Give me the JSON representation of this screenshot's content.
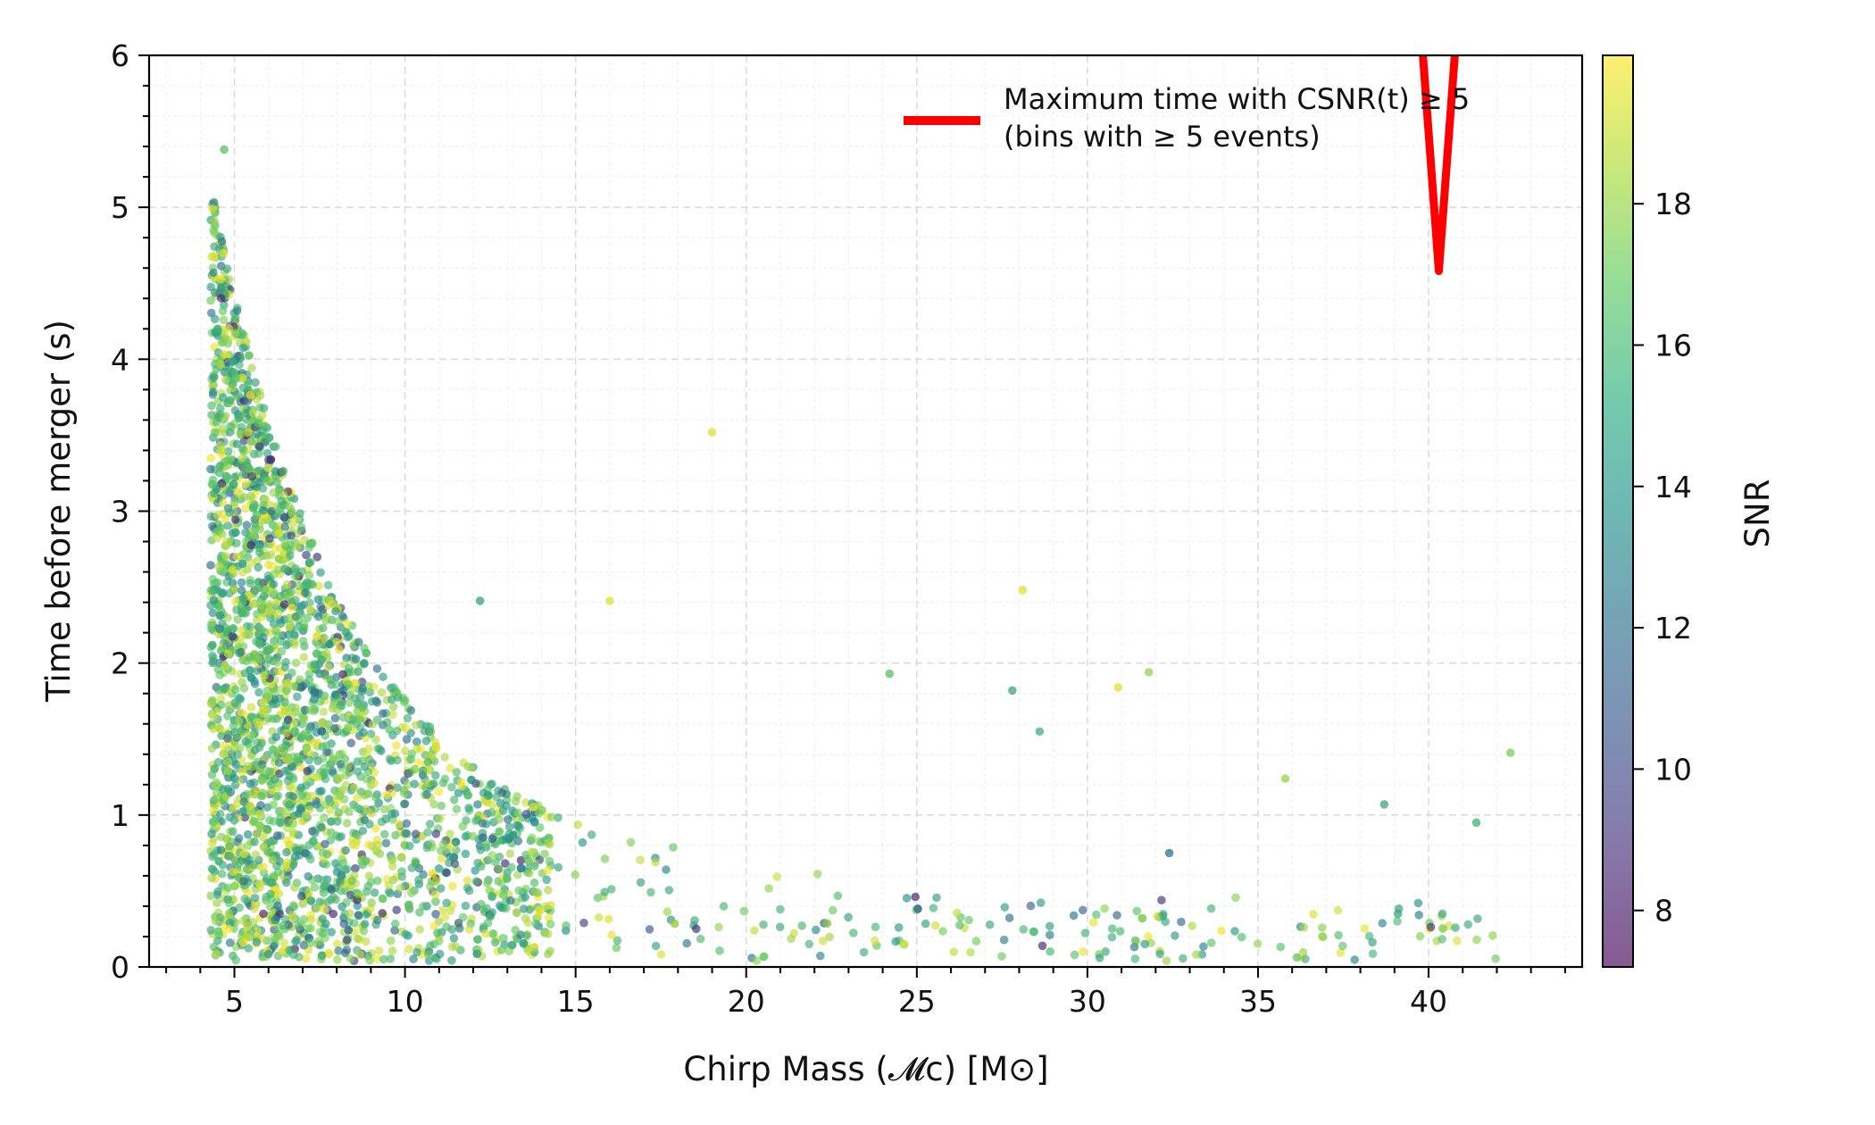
{
  "chart_data": {
    "type": "scatter",
    "title": "",
    "xlabel": "Chirp Mass (𝓜c) [M⊙]",
    "ylabel": "Time before merger (s)",
    "xlim": [
      2.5,
      44.5
    ],
    "ylim": [
      0,
      6
    ],
    "x_ticks": [
      "5",
      "10",
      "15",
      "20",
      "25",
      "30",
      "35",
      "40"
    ],
    "y_ticks": [
      "0",
      "1",
      "2",
      "3",
      "4",
      "5",
      "6"
    ],
    "grid": true,
    "colorbar": {
      "label": "SNR",
      "range": [
        7.2,
        20.1
      ],
      "ticks": [
        "8",
        "10",
        "12",
        "14",
        "16",
        "18"
      ],
      "colormap": [
        "#440154",
        "#3b528b",
        "#21918c",
        "#5ec962",
        "#fde725"
      ],
      "alpha": 0.65
    },
    "legend": {
      "placement": "top-right",
      "entries": [
        {
          "label_line1": "Maximum time with CSNR(t) ≥ 5",
          "label_line2": "(bins with ≥ 5 events)",
          "color": "#ff0000"
        }
      ]
    },
    "series": [
      {
        "name": "Maximum time with CSNR(t) ≥ 5",
        "type": "line",
        "color": "#ff0000",
        "x": [
          39.8,
          40.3,
          40.8
        ],
        "y": [
          6.1,
          4.58,
          6.1
        ]
      }
    ],
    "scatter": {
      "description": "",
      "n_points": 3000,
      "labeled_points": [
        {
          "x": 4.7,
          "y": 5.38,
          "snr": 16.5
        },
        {
          "x": 4.4,
          "y": 4.68,
          "snr": 19.5
        },
        {
          "x": 19.0,
          "y": 3.52,
          "snr": 19.5
        },
        {
          "x": 28.1,
          "y": 2.48,
          "snr": 19.5
        },
        {
          "x": 42.4,
          "y": 1.41,
          "snr": 17.5
        },
        {
          "x": 41.4,
          "y": 0.95,
          "snr": 15.5
        },
        {
          "x": 38.7,
          "y": 1.07,
          "snr": 15.0
        },
        {
          "x": 32.4,
          "y": 0.75,
          "snr": 12.0
        },
        {
          "x": 39.1,
          "y": 0.35,
          "snr": 15.0
        },
        {
          "x": 35.8,
          "y": 1.24,
          "snr": 18.0
        },
        {
          "x": 31.8,
          "y": 1.94,
          "snr": 18.0
        },
        {
          "x": 30.9,
          "y": 1.84,
          "snr": 19.5
        },
        {
          "x": 24.2,
          "y": 1.93,
          "snr": 16.5
        },
        {
          "x": 16.0,
          "y": 2.41,
          "snr": 19.5
        },
        {
          "x": 12.2,
          "y": 2.41,
          "snr": 14.5
        },
        {
          "x": 27.8,
          "y": 1.82,
          "snr": 15.0
        },
        {
          "x": 28.6,
          "y": 1.55,
          "snr": 15.5
        }
      ]
    }
  }
}
